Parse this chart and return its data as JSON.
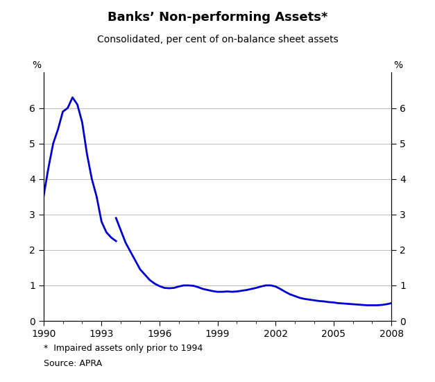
{
  "title": "Banks’ Non-performing Assets*",
  "subtitle": "Consolidated, per cent of on-balance sheet assets",
  "pct_label": "%",
  "footnote1": "*  Impaired assets only prior to 1994",
  "footnote2": "Source: APRA",
  "line_color": "#0000CC",
  "line_width": 2.0,
  "xlim": [
    1990,
    2008
  ],
  "ylim": [
    0,
    7
  ],
  "yticks": [
    0,
    1,
    2,
    3,
    4,
    5,
    6
  ],
  "xticks": [
    1990,
    1993,
    1996,
    1999,
    2002,
    2005,
    2008
  ],
  "grid_color": "#bbbbbb",
  "background": "#ffffff",
  "segment1_x": [
    1990.0,
    1990.25,
    1990.5,
    1990.75,
    1991.0,
    1991.25,
    1991.5,
    1991.75,
    1992.0,
    1992.25,
    1992.5,
    1992.75,
    1993.0,
    1993.25,
    1993.5,
    1993.75
  ],
  "segment1_y": [
    3.5,
    4.3,
    5.0,
    5.4,
    5.9,
    6.0,
    6.3,
    6.1,
    5.6,
    4.7,
    4.0,
    3.5,
    2.8,
    2.5,
    2.35,
    2.25
  ],
  "segment2_x": [
    1993.75,
    1994.0,
    1994.25,
    1994.5,
    1994.75,
    1995.0,
    1995.25,
    1995.5,
    1995.75,
    1996.0,
    1996.25,
    1996.5,
    1996.75,
    1997.0,
    1997.25,
    1997.5,
    1997.75,
    1998.0,
    1998.25,
    1998.5,
    1998.75,
    1999.0,
    1999.25,
    1999.5,
    1999.75,
    2000.0,
    2000.25,
    2000.5,
    2000.75,
    2001.0,
    2001.25,
    2001.5,
    2001.75,
    2002.0,
    2002.25,
    2002.5,
    2002.75,
    2003.0,
    2003.25,
    2003.5,
    2003.75,
    2004.0,
    2004.25,
    2004.5,
    2004.75,
    2005.0,
    2005.25,
    2005.5,
    2005.75,
    2006.0,
    2006.25,
    2006.5,
    2006.75,
    2007.0,
    2007.25,
    2007.5,
    2007.75,
    2008.0
  ],
  "segment2_y": [
    2.9,
    2.55,
    2.2,
    1.95,
    1.7,
    1.45,
    1.3,
    1.15,
    1.05,
    0.98,
    0.93,
    0.92,
    0.93,
    0.97,
    1.0,
    1.0,
    0.99,
    0.95,
    0.9,
    0.87,
    0.84,
    0.82,
    0.82,
    0.83,
    0.82,
    0.83,
    0.85,
    0.87,
    0.9,
    0.93,
    0.97,
    1.0,
    1.0,
    0.97,
    0.9,
    0.82,
    0.75,
    0.7,
    0.65,
    0.62,
    0.6,
    0.58,
    0.56,
    0.55,
    0.53,
    0.52,
    0.5,
    0.49,
    0.48,
    0.47,
    0.46,
    0.45,
    0.44,
    0.44,
    0.44,
    0.45,
    0.47,
    0.5
  ]
}
